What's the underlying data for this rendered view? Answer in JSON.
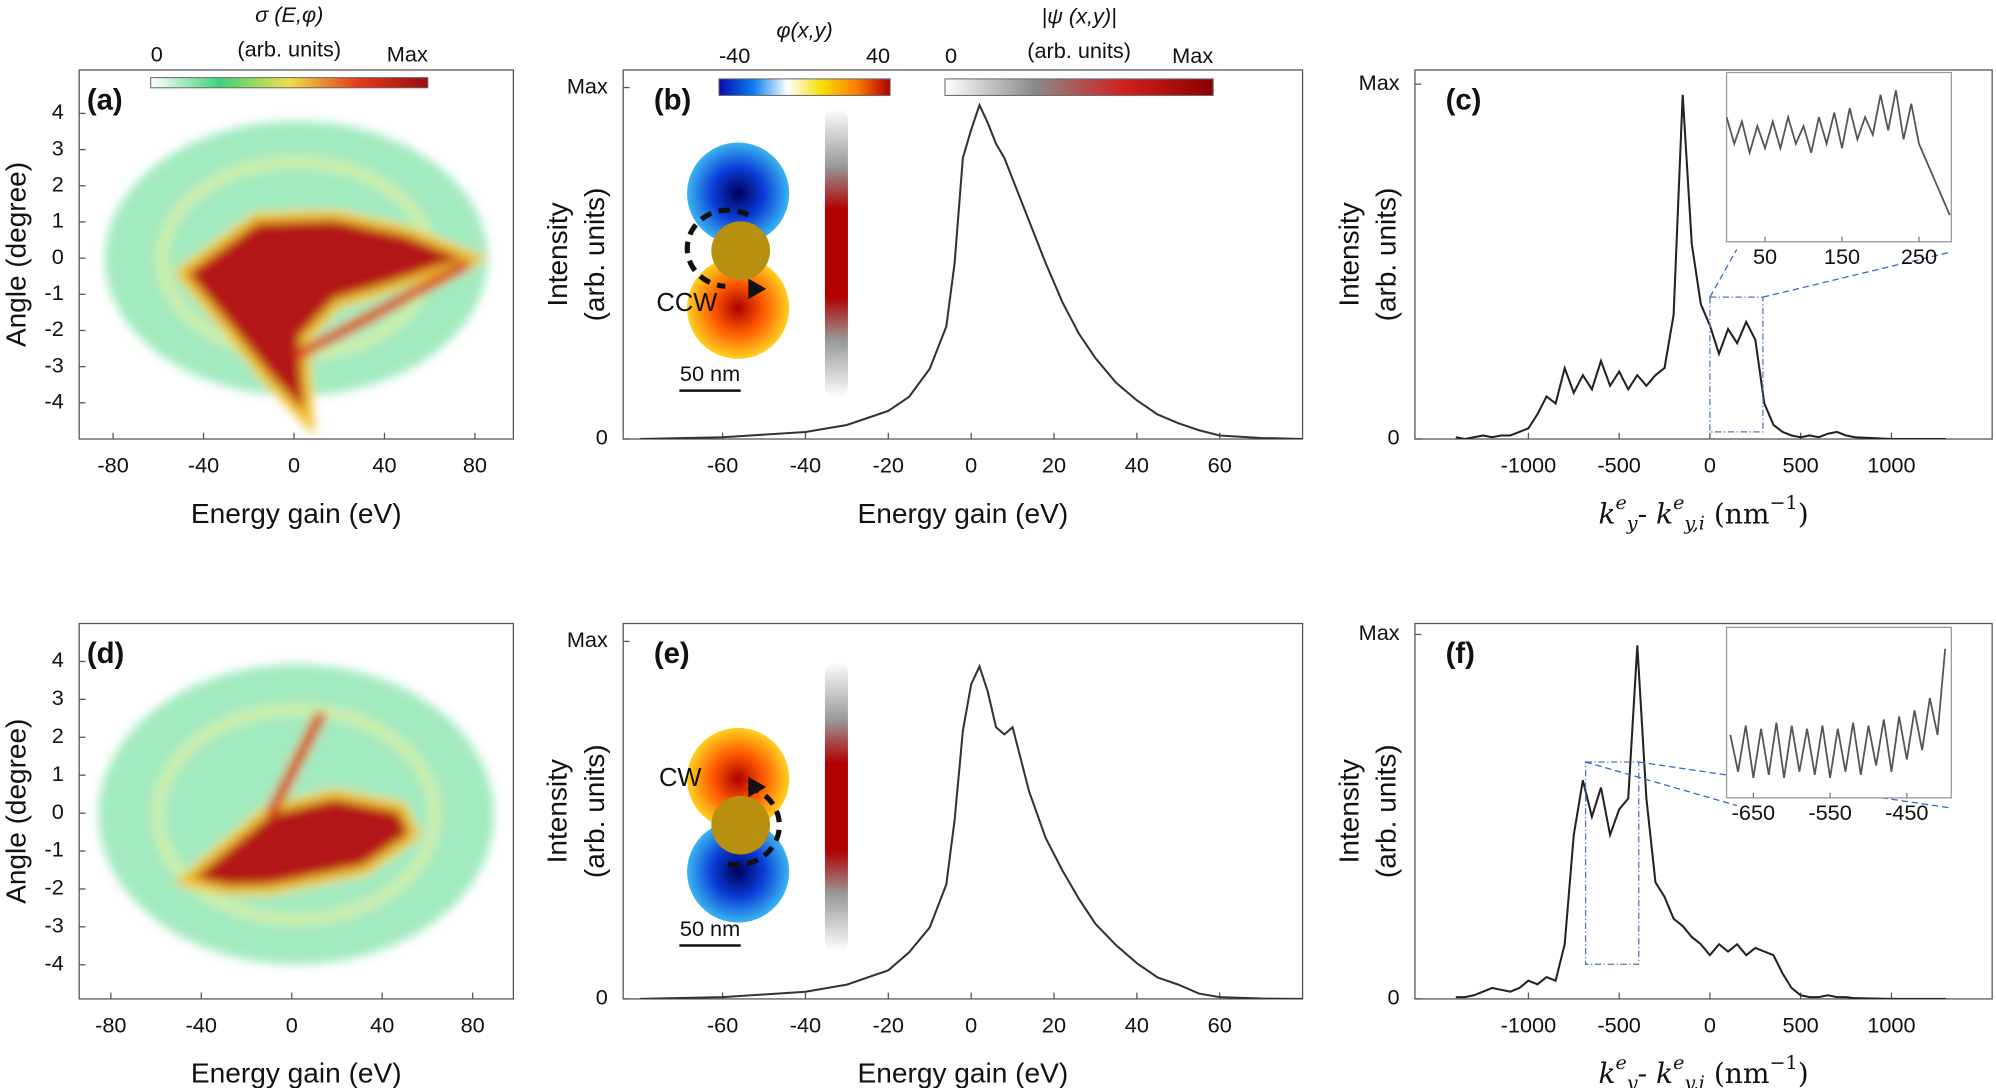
{
  "chart_data": [
    {
      "type": "heatmap",
      "panel_label": "(a)",
      "xlabel": "Energy gain (eV)",
      "ylabel": "Angle (degree)",
      "xlim": [
        -95,
        97
      ],
      "ylim": [
        -5,
        5.2
      ],
      "xticks": [
        -80,
        -40,
        0,
        40,
        80
      ],
      "yticks": [
        -4,
        -3,
        -2,
        -1,
        0,
        1,
        2,
        3,
        4
      ],
      "colorbars": [
        {
          "title": "σ (E,φ)",
          "subtitle": "(arb. units)",
          "lim": [
            0,
            1
          ],
          "ticks": [
            0,
            {
              "value": 1,
              "label": "Max"
            }
          ],
          "colors": [
            "#ffffff",
            "#3fd07a",
            "#f1e04a",
            "#e23a1d",
            "#9b0d0d"
          ]
        }
      ]
    },
    {
      "type": "line",
      "panel_label": "(b)",
      "xlabel": "Energy gain (eV)",
      "ylabel": [
        "Intensity",
        "(arb. units)"
      ],
      "xlim": [
        -84,
        80
      ],
      "ylim": [
        0,
        1.05
      ],
      "xticks": [
        -60,
        -40,
        -20,
        0,
        20,
        40,
        60
      ],
      "yticks": [
        0,
        {
          "value": 1,
          "label": "Max"
        }
      ],
      "color": "#333333",
      "x": [
        -80,
        -60,
        -40,
        -30,
        -20,
        -15,
        -10,
        -6,
        -4,
        -2,
        0,
        2,
        4,
        6,
        8,
        10,
        14,
        18,
        22,
        26,
        30,
        35,
        40,
        45,
        50,
        55,
        60,
        70,
        80
      ],
      "values": [
        0,
        0.005,
        0.02,
        0.04,
        0.08,
        0.12,
        0.2,
        0.32,
        0.5,
        0.8,
        0.88,
        0.95,
        0.9,
        0.84,
        0.8,
        0.74,
        0.62,
        0.5,
        0.39,
        0.3,
        0.23,
        0.16,
        0.11,
        0.07,
        0.045,
        0.025,
        0.01,
        0.003,
        0
      ],
      "diagram": {
        "label": "CCW",
        "scale": "50 nm"
      },
      "colorbars": [
        {
          "title": "φ(x,y)",
          "lim": [
            -40,
            40
          ],
          "ticks": [
            -40,
            40
          ],
          "colors": [
            "#0a0ab0",
            "#0a7cf0",
            "#ffffff",
            "#f5e000",
            "#ff8000",
            "#b00000"
          ]
        },
        {
          "title": "|ψ (x,y)|",
          "subtitle": "(arb. units)",
          "lim": [
            0,
            1
          ],
          "ticks": [
            0,
            {
              "value": 1,
              "label": "Max"
            }
          ],
          "colors": [
            "#ffffff",
            "#8a8a8a",
            "#d02020",
            "#8b0000"
          ]
        }
      ]
    },
    {
      "type": "line",
      "panel_label": "(c)",
      "ylabel": [
        "Intensity",
        "(arb. units)"
      ],
      "xlabel": [
        {
          "text": "k"
        },
        {
          "text": "e",
          "pos": "sup"
        },
        {
          "text": "y",
          "pos": "sub"
        },
        {
          "text": "- k"
        },
        {
          "text": "e",
          "pos": "sup"
        },
        {
          "text": "y,i",
          "pos": "sub"
        },
        {
          "text": " (nm"
        },
        {
          "text": "−1",
          "pos": "sup"
        },
        {
          "text": ")"
        }
      ],
      "xlim": [
        -1625,
        1555
      ],
      "ylim": [
        0,
        1.04
      ],
      "xticks": [
        -1000,
        -500,
        0,
        500,
        1000
      ],
      "yticks": [
        0,
        {
          "value": 1,
          "label": "Max"
        }
      ],
      "color": "#222222",
      "x": [
        -1400,
        -1350,
        -1300,
        -1250,
        -1200,
        -1150,
        -1100,
        -1050,
        -1000,
        -950,
        -900,
        -850,
        -800,
        -750,
        -700,
        -650,
        -600,
        -550,
        -500,
        -450,
        -400,
        -350,
        -300,
        -250,
        -200,
        -150,
        -100,
        -50,
        0,
        50,
        100,
        150,
        200,
        250,
        300,
        350,
        400,
        450,
        500,
        550,
        600,
        650,
        700,
        750,
        800,
        1000,
        1300
      ],
      "values": [
        0.005,
        0,
        0.005,
        0.01,
        0.005,
        0.01,
        0.01,
        0.02,
        0.03,
        0.07,
        0.12,
        0.1,
        0.2,
        0.13,
        0.18,
        0.14,
        0.22,
        0.15,
        0.19,
        0.14,
        0.18,
        0.15,
        0.18,
        0.2,
        0.35,
        0.97,
        0.55,
        0.38,
        0.32,
        0.24,
        0.31,
        0.27,
        0.33,
        0.28,
        0.1,
        0.04,
        0.02,
        0.01,
        0.005,
        0.01,
        0.005,
        0.015,
        0.02,
        0.01,
        0.005,
        0,
        0
      ],
      "inset": {
        "xlim": [
          0,
          292
        ],
        "ylim": [
          0.02,
          0.4
        ],
        "xticks": [
          50,
          150,
          250
        ],
        "x": [
          0,
          10,
          20,
          30,
          40,
          50,
          60,
          70,
          80,
          90,
          100,
          110,
          120,
          130,
          140,
          150,
          160,
          170,
          180,
          190,
          200,
          210,
          220,
          230,
          240,
          250,
          260,
          270,
          280,
          290
        ],
        "values": [
          0.3,
          0.24,
          0.29,
          0.22,
          0.28,
          0.23,
          0.29,
          0.23,
          0.3,
          0.24,
          0.28,
          0.22,
          0.3,
          0.24,
          0.31,
          0.23,
          0.32,
          0.25,
          0.3,
          0.26,
          0.35,
          0.27,
          0.36,
          0.25,
          0.33,
          0.24,
          0.2,
          0.16,
          0.12,
          0.08
        ]
      }
    },
    {
      "type": "heatmap",
      "panel_label": "(d)",
      "xlabel": "Energy gain (eV)",
      "ylabel": "Angle (degree)",
      "xlim": [
        -94,
        98
      ],
      "ylim": [
        -4.9,
        5
      ],
      "xticks": [
        -80,
        -40,
        0,
        40,
        80
      ],
      "yticks": [
        -4,
        -3,
        -2,
        -1,
        0,
        1,
        2,
        3,
        4
      ]
    },
    {
      "type": "line",
      "panel_label": "(e)",
      "xlabel": "Energy gain (eV)",
      "ylabel": [
        "Intensity",
        "(arb. units)"
      ],
      "xlim": [
        -84,
        80
      ],
      "ylim": [
        0,
        1.05
      ],
      "xticks": [
        -60,
        -40,
        -20,
        0,
        20,
        40,
        60
      ],
      "yticks": [
        0,
        {
          "value": 1,
          "label": "Max"
        }
      ],
      "color": "#333333",
      "x": [
        -80,
        -60,
        -40,
        -30,
        -20,
        -15,
        -10,
        -6,
        -4,
        -2,
        0,
        2,
        4,
        6,
        8,
        10,
        14,
        18,
        22,
        26,
        30,
        35,
        40,
        45,
        50,
        55,
        60,
        70,
        80
      ],
      "values": [
        0,
        0.005,
        0.02,
        0.04,
        0.08,
        0.13,
        0.2,
        0.32,
        0.5,
        0.75,
        0.88,
        0.93,
        0.86,
        0.76,
        0.74,
        0.76,
        0.58,
        0.45,
        0.36,
        0.28,
        0.21,
        0.15,
        0.1,
        0.06,
        0.04,
        0.015,
        0.005,
        0.001,
        0
      ],
      "diagram": {
        "label": "CW",
        "scale": "50 nm"
      }
    },
    {
      "type": "line",
      "panel_label": "(f)",
      "ylabel": [
        "Intensity",
        "(arb. units)"
      ],
      "xlabel": [
        {
          "text": "k"
        },
        {
          "text": "e",
          "pos": "sup"
        },
        {
          "text": "y",
          "pos": "sub"
        },
        {
          "text": "- k"
        },
        {
          "text": "e",
          "pos": "sup"
        },
        {
          "text": "y,i",
          "pos": "sub"
        },
        {
          "text": " (nm"
        },
        {
          "text": "−1",
          "pos": "sup"
        },
        {
          "text": ")"
        }
      ],
      "xlim": [
        -1625,
        1555
      ],
      "ylim": [
        0,
        1.03
      ],
      "xticks": [
        -1000,
        -500,
        0,
        500,
        1000
      ],
      "yticks": [
        0,
        {
          "value": 1,
          "label": "Max"
        }
      ],
      "color": "#222222",
      "x": [
        -1400,
        -1350,
        -1300,
        -1250,
        -1200,
        -1150,
        -1100,
        -1050,
        -1000,
        -950,
        -900,
        -850,
        -800,
        -750,
        -700,
        -650,
        -600,
        -550,
        -500,
        -450,
        -400,
        -350,
        -300,
        -250,
        -200,
        -150,
        -100,
        -50,
        0,
        50,
        100,
        150,
        200,
        250,
        300,
        350,
        400,
        450,
        500,
        550,
        600,
        650,
        700,
        750,
        800,
        1000,
        1300
      ],
      "values": [
        0.005,
        0.005,
        0.01,
        0.02,
        0.03,
        0.025,
        0.02,
        0.03,
        0.05,
        0.04,
        0.06,
        0.05,
        0.15,
        0.45,
        0.6,
        0.5,
        0.58,
        0.45,
        0.52,
        0.55,
        0.97,
        0.55,
        0.32,
        0.28,
        0.22,
        0.2,
        0.17,
        0.15,
        0.12,
        0.15,
        0.13,
        0.15,
        0.12,
        0.14,
        0.13,
        0.12,
        0.07,
        0.03,
        0.01,
        0.005,
        0.005,
        0.01,
        0.005,
        0.005,
        0.002,
        0,
        0
      ],
      "inset": {
        "xlim": [
          -685,
          -392
        ],
        "ylim": [
          0.095,
          0.65
        ],
        "xticks": [
          -650,
          -550,
          -450
        ],
        "x": [
          -680,
          -670,
          -660,
          -650,
          -640,
          -630,
          -620,
          -610,
          -600,
          -590,
          -580,
          -570,
          -560,
          -550,
          -540,
          -530,
          -520,
          -510,
          -500,
          -490,
          -480,
          -470,
          -460,
          -450,
          -440,
          -430,
          -420,
          -410,
          -400
        ],
        "values": [
          0.3,
          0.18,
          0.33,
          0.16,
          0.32,
          0.17,
          0.34,
          0.16,
          0.33,
          0.18,
          0.32,
          0.17,
          0.33,
          0.16,
          0.32,
          0.18,
          0.34,
          0.17,
          0.33,
          0.2,
          0.35,
          0.18,
          0.36,
          0.22,
          0.38,
          0.25,
          0.42,
          0.3,
          0.58
        ]
      }
    }
  ]
}
